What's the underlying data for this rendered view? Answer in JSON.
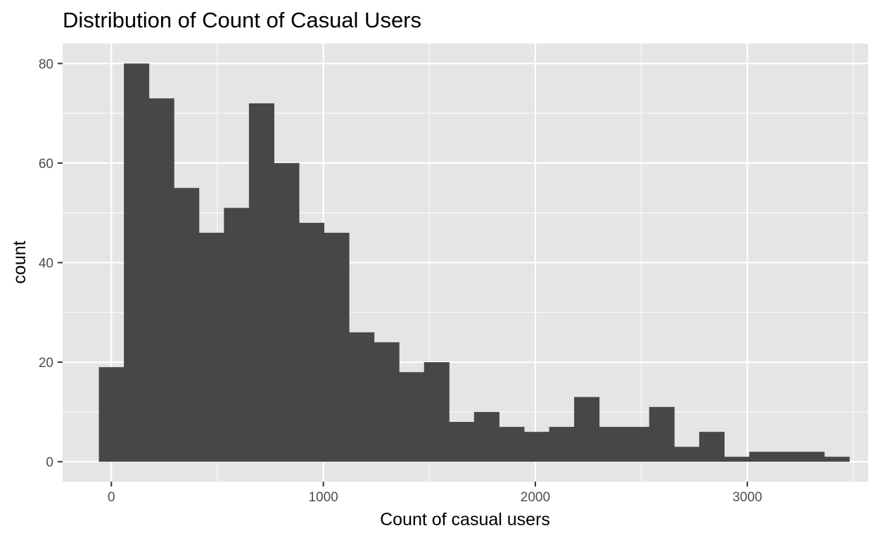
{
  "chart_data": {
    "type": "bar",
    "title": "Distribution of Count of Casual Users",
    "xlabel": "Count of casual users",
    "ylabel": "count",
    "x_ticks": [
      0,
      1000,
      2000,
      3000
    ],
    "x_tick_labels": [
      "0",
      "1000",
      "2000",
      "3000"
    ],
    "y_ticks": [
      0,
      20,
      40,
      60,
      80
    ],
    "y_tick_labels": [
      "0",
      "20",
      "40",
      "60",
      "80"
    ],
    "xlim": [
      -230,
      3570
    ],
    "ylim": [
      -4,
      84
    ],
    "grid": true,
    "bins": [
      {
        "x0": -59,
        "x1": 59,
        "count": 19
      },
      {
        "x0": 59,
        "x1": 177,
        "count": 80
      },
      {
        "x0": 177,
        "x1": 295,
        "count": 73
      },
      {
        "x0": 295,
        "x1": 413,
        "count": 55
      },
      {
        "x0": 413,
        "x1": 531,
        "count": 46
      },
      {
        "x0": 531,
        "x1": 649,
        "count": 51
      },
      {
        "x0": 649,
        "x1": 767,
        "count": 72
      },
      {
        "x0": 767,
        "x1": 885,
        "count": 60
      },
      {
        "x0": 885,
        "x1": 1003,
        "count": 48
      },
      {
        "x0": 1003,
        "x1": 1121,
        "count": 46
      },
      {
        "x0": 1121,
        "x1": 1239,
        "count": 26
      },
      {
        "x0": 1239,
        "x1": 1357,
        "count": 24
      },
      {
        "x0": 1357,
        "x1": 1475,
        "count": 18
      },
      {
        "x0": 1475,
        "x1": 1593,
        "count": 20
      },
      {
        "x0": 1593,
        "x1": 1711,
        "count": 8
      },
      {
        "x0": 1711,
        "x1": 1829,
        "count": 10
      },
      {
        "x0": 1829,
        "x1": 1947,
        "count": 7
      },
      {
        "x0": 1947,
        "x1": 2065,
        "count": 6
      },
      {
        "x0": 2065,
        "x1": 2183,
        "count": 7
      },
      {
        "x0": 2183,
        "x1": 2301,
        "count": 13
      },
      {
        "x0": 2301,
        "x1": 2419,
        "count": 7
      },
      {
        "x0": 2419,
        "x1": 2537,
        "count": 7
      },
      {
        "x0": 2537,
        "x1": 2655,
        "count": 11
      },
      {
        "x0": 2655,
        "x1": 2773,
        "count": 3
      },
      {
        "x0": 2773,
        "x1": 2891,
        "count": 6
      },
      {
        "x0": 2891,
        "x1": 3009,
        "count": 1
      },
      {
        "x0": 3009,
        "x1": 3127,
        "count": 2
      },
      {
        "x0": 3127,
        "x1": 3245,
        "count": 2
      },
      {
        "x0": 3245,
        "x1": 3363,
        "count": 2
      },
      {
        "x0": 3363,
        "x1": 3481,
        "count": 1
      }
    ],
    "colors": {
      "bar": "#474747",
      "panel": "#e5e5e5",
      "grid": "#ffffff",
      "tick_text": "#4d4d4d",
      "tick_mark": "#333333"
    }
  }
}
